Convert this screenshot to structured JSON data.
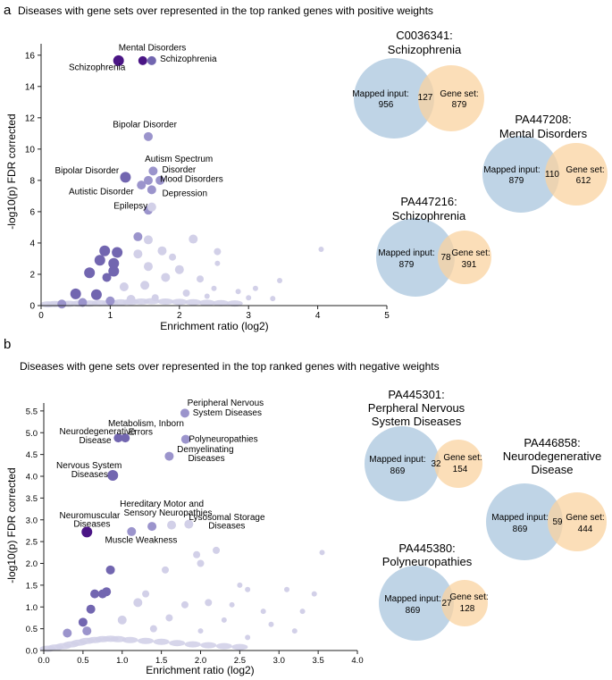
{
  "colors": {
    "point_light": "#d2d0e8",
    "point_mid": "#9b94cc",
    "point_dark": "#7266b0",
    "point_darkest": "#4a1585",
    "venn_blue": "#a9c6dd",
    "venn_orange": "#f9d3a0",
    "axis": "#222222"
  },
  "chart_data": [
    {
      "panel_letter": "a",
      "type": "scatter",
      "title": "Diseases with gene sets over represented in the top ranked genes with positive weights",
      "xlabel": "Enrichment ratio (log2)",
      "ylabel": "-log10(p) FDR corrected",
      "xlim": [
        0,
        5
      ],
      "ylim": [
        0,
        16.5
      ],
      "xticks": [
        "0",
        "1",
        "2",
        "3",
        "4",
        "5"
      ],
      "yticks": [
        "0",
        "2",
        "4",
        "6",
        "8",
        "10",
        "12",
        "14",
        "16"
      ],
      "labels": [
        {
          "text": "Mental Disorders",
          "x": 1.12,
          "y": 16.3,
          "anchor": "start"
        },
        {
          "text": "Schizophrenia",
          "x": 0.4,
          "y": 15.05,
          "anchor": "start"
        },
        {
          "text": "Schizophrenia",
          "x": 1.72,
          "y": 15.6,
          "anchor": "start"
        },
        {
          "text": "Bipolar Disorder",
          "x": 1.5,
          "y": 11.4,
          "anchor": "middle"
        },
        {
          "text": "Autism Spectrum",
          "x": 1.5,
          "y": 9.2,
          "anchor": "start"
        },
        {
          "text": "Disorder",
          "x": 1.75,
          "y": 8.5,
          "anchor": "start"
        },
        {
          "text": "Bipolar Disorder",
          "x": 0.2,
          "y": 8.45,
          "anchor": "start"
        },
        {
          "text": "Mood Disorders",
          "x": 1.72,
          "y": 7.9,
          "anchor": "start"
        },
        {
          "text": "Autistic Disorder",
          "x": 0.4,
          "y": 7.1,
          "anchor": "start"
        },
        {
          "text": "Depression",
          "x": 1.75,
          "y": 7.0,
          "anchor": "start"
        },
        {
          "text": "Epilepsy",
          "x": 1.05,
          "y": 6.2,
          "anchor": "start"
        }
      ],
      "points": [
        {
          "x": 1.12,
          "y": 15.65,
          "tone": "darkest",
          "r": 6
        },
        {
          "x": 1.47,
          "y": 15.65,
          "tone": "darkest",
          "r": 5
        },
        {
          "x": 1.6,
          "y": 15.65,
          "tone": "dark",
          "r": 5
        },
        {
          "x": 1.55,
          "y": 10.8,
          "tone": "mid",
          "r": 5
        },
        {
          "x": 1.22,
          "y": 8.2,
          "tone": "dark",
          "r": 6
        },
        {
          "x": 1.62,
          "y": 8.6,
          "tone": "mid",
          "r": 5
        },
        {
          "x": 1.55,
          "y": 8.0,
          "tone": "mid",
          "r": 5
        },
        {
          "x": 1.72,
          "y": 8.0,
          "tone": "mid",
          "r": 5
        },
        {
          "x": 1.45,
          "y": 7.7,
          "tone": "mid",
          "r": 5
        },
        {
          "x": 1.6,
          "y": 7.4,
          "tone": "mid",
          "r": 5
        },
        {
          "x": 1.55,
          "y": 6.1,
          "tone": "mid",
          "r": 5
        },
        {
          "x": 1.6,
          "y": 6.3,
          "tone": "light",
          "r": 5
        },
        {
          "x": 1.4,
          "y": 4.4,
          "tone": "mid",
          "r": 5
        },
        {
          "x": 1.55,
          "y": 4.2,
          "tone": "light",
          "r": 5
        },
        {
          "x": 2.2,
          "y": 4.25,
          "tone": "light",
          "r": 5
        },
        {
          "x": 0.92,
          "y": 3.5,
          "tone": "dark",
          "r": 6
        },
        {
          "x": 1.1,
          "y": 3.4,
          "tone": "dark",
          "r": 6
        },
        {
          "x": 1.75,
          "y": 3.5,
          "tone": "light",
          "r": 5
        },
        {
          "x": 2.55,
          "y": 3.45,
          "tone": "light",
          "r": 4
        },
        {
          "x": 0.85,
          "y": 2.9,
          "tone": "dark",
          "r": 6
        },
        {
          "x": 1.05,
          "y": 2.7,
          "tone": "dark",
          "r": 6
        },
        {
          "x": 1.4,
          "y": 3.3,
          "tone": "light",
          "r": 5
        },
        {
          "x": 1.9,
          "y": 3.1,
          "tone": "light",
          "r": 4
        },
        {
          "x": 2.55,
          "y": 2.7,
          "tone": "light",
          "r": 3
        },
        {
          "x": 4.05,
          "y": 3.6,
          "tone": "light",
          "r": 3
        },
        {
          "x": 0.7,
          "y": 2.1,
          "tone": "dark",
          "r": 6
        },
        {
          "x": 1.05,
          "y": 2.2,
          "tone": "dark",
          "r": 6
        },
        {
          "x": 1.55,
          "y": 2.5,
          "tone": "light",
          "r": 5
        },
        {
          "x": 2.0,
          "y": 2.3,
          "tone": "light",
          "r": 5
        },
        {
          "x": 1.8,
          "y": 1.8,
          "tone": "light",
          "r": 5
        },
        {
          "x": 0.95,
          "y": 1.8,
          "tone": "dark",
          "r": 5
        },
        {
          "x": 2.3,
          "y": 1.7,
          "tone": "light",
          "r": 4
        },
        {
          "x": 3.45,
          "y": 1.6,
          "tone": "light",
          "r": 3
        },
        {
          "x": 0.5,
          "y": 0.75,
          "tone": "dark",
          "r": 6
        },
        {
          "x": 0.8,
          "y": 0.7,
          "tone": "dark",
          "r": 6
        },
        {
          "x": 1.2,
          "y": 1.2,
          "tone": "light",
          "r": 5
        },
        {
          "x": 1.5,
          "y": 1.3,
          "tone": "light",
          "r": 5
        },
        {
          "x": 2.5,
          "y": 1.1,
          "tone": "light",
          "r": 3
        },
        {
          "x": 2.85,
          "y": 0.9,
          "tone": "light",
          "r": 3
        },
        {
          "x": 3.1,
          "y": 1.1,
          "tone": "light",
          "r": 3
        },
        {
          "x": 2.1,
          "y": 0.8,
          "tone": "light",
          "r": 4
        },
        {
          "x": 2.4,
          "y": 0.6,
          "tone": "light",
          "r": 3
        },
        {
          "x": 3.0,
          "y": 0.5,
          "tone": "light",
          "r": 3
        },
        {
          "x": 3.35,
          "y": 0.45,
          "tone": "light",
          "r": 3
        },
        {
          "x": 1.0,
          "y": 0.3,
          "tone": "mid",
          "r": 5
        },
        {
          "x": 1.3,
          "y": 0.4,
          "tone": "light",
          "r": 5
        },
        {
          "x": 1.65,
          "y": 0.5,
          "tone": "light",
          "r": 4
        },
        {
          "x": 0.3,
          "y": 0.1,
          "tone": "mid",
          "r": 5
        },
        {
          "x": 0.6,
          "y": 0.2,
          "tone": "mid",
          "r": 5
        }
      ],
      "cloud": [
        {
          "x": 0.1,
          "y": 0.02
        },
        {
          "x": 0.2,
          "y": 0.04
        },
        {
          "x": 0.3,
          "y": 0.05
        },
        {
          "x": 0.4,
          "y": 0.06
        },
        {
          "x": 0.55,
          "y": 0.07
        },
        {
          "x": 0.7,
          "y": 0.08
        },
        {
          "x": 0.85,
          "y": 0.1
        },
        {
          "x": 1.0,
          "y": 0.12
        },
        {
          "x": 1.15,
          "y": 0.15
        },
        {
          "x": 1.3,
          "y": 0.18
        },
        {
          "x": 1.45,
          "y": 0.2
        },
        {
          "x": 1.6,
          "y": 0.22
        },
        {
          "x": 1.8,
          "y": 0.2
        },
        {
          "x": 2.0,
          "y": 0.18
        },
        {
          "x": 2.2,
          "y": 0.16
        },
        {
          "x": 2.4,
          "y": 0.12
        },
        {
          "x": 2.6,
          "y": 0.1
        },
        {
          "x": 2.8,
          "y": 0.08
        }
      ],
      "venn": [
        {
          "title_1": "C0036341:",
          "title_2": "Schizophrenia",
          "mapped_label": "Mapped input:",
          "mapped": "956",
          "overlap": "127",
          "gene_label": "Gene set:",
          "gene": "879"
        },
        {
          "title_1": "PA447208:",
          "title_2": "Mental Disorders",
          "mapped_label": "Mapped input:",
          "mapped": "879",
          "overlap": "110",
          "gene_label": "Gene set:",
          "gene": "612"
        },
        {
          "title_1": "PA447216:",
          "title_2": "Schizophrenia",
          "mapped_label": "Mapped input:",
          "mapped": "879",
          "overlap": "78",
          "gene_label": "Gene set:",
          "gene": "391"
        }
      ]
    },
    {
      "panel_letter": "b",
      "type": "scatter",
      "title": "Diseases with gene sets over represented in the top ranked genes with negative weights",
      "xlabel": "Enrichment ratio (log2)",
      "ylabel": "-log10(p) FDR corrected",
      "xlim": [
        0,
        4
      ],
      "ylim": [
        0,
        5.6
      ],
      "xticks": [
        "0.0",
        "0.5",
        "1.0",
        "1.5",
        "2.0",
        "2.5",
        "3.0",
        "3.5",
        "4.0"
      ],
      "yticks": [
        "0.0",
        "0.5",
        "1.0",
        "1.5",
        "2.0",
        "2.5",
        "3.0",
        "3.5",
        "4.0",
        "4.5",
        "5.0",
        "5.5"
      ],
      "labels": [
        {
          "text": "Peripheral Nervous",
          "x": 1.83,
          "y": 5.62,
          "anchor": "start"
        },
        {
          "text": "System Diseases",
          "x": 1.9,
          "y": 5.4,
          "anchor": "start"
        },
        {
          "text": "Metabolism, Inborn",
          "x": 0.82,
          "y": 5.15,
          "anchor": "start"
        },
        {
          "text": "Errors",
          "x": 1.08,
          "y": 4.95,
          "anchor": "start"
        },
        {
          "text": "Neurodegenerative",
          "x": 0.2,
          "y": 4.96,
          "anchor": "start"
        },
        {
          "text": "Disease",
          "x": 0.45,
          "y": 4.76,
          "anchor": "start"
        },
        {
          "text": "Polyneuropathies",
          "x": 1.85,
          "y": 4.79,
          "anchor": "start"
        },
        {
          "text": "Demyelinating",
          "x": 1.7,
          "y": 4.55,
          "anchor": "start"
        },
        {
          "text": "Diseases",
          "x": 1.84,
          "y": 4.35,
          "anchor": "start"
        },
        {
          "text": "Nervous System",
          "x": 0.16,
          "y": 4.18,
          "anchor": "start"
        },
        {
          "text": "Diseases",
          "x": 0.35,
          "y": 3.98,
          "anchor": "start"
        },
        {
          "text": "Hereditary Motor and",
          "x": 0.97,
          "y": 3.3,
          "anchor": "start"
        },
        {
          "text": "Sensory Neuropathies",
          "x": 1.02,
          "y": 3.1,
          "anchor": "start"
        },
        {
          "text": "Neuromuscular",
          "x": 0.2,
          "y": 3.04,
          "anchor": "start"
        },
        {
          "text": "Diseases",
          "x": 0.38,
          "y": 2.84,
          "anchor": "start"
        },
        {
          "text": "Lysosomal Storage",
          "x": 1.85,
          "y": 3.0,
          "anchor": "start"
        },
        {
          "text": "Diseases",
          "x": 2.1,
          "y": 2.8,
          "anchor": "start"
        },
        {
          "text": "Muscle Weakness",
          "x": 0.78,
          "y": 2.47,
          "anchor": "start"
        }
      ],
      "points": [
        {
          "x": 1.8,
          "y": 5.45,
          "tone": "mid",
          "r": 5
        },
        {
          "x": 0.95,
          "y": 4.88,
          "tone": "dark",
          "r": 5
        },
        {
          "x": 1.04,
          "y": 4.88,
          "tone": "dark",
          "r": 5
        },
        {
          "x": 1.81,
          "y": 4.85,
          "tone": "mid",
          "r": 5
        },
        {
          "x": 1.6,
          "y": 4.46,
          "tone": "mid",
          "r": 5
        },
        {
          "x": 0.88,
          "y": 4.02,
          "tone": "dark",
          "r": 6
        },
        {
          "x": 0.55,
          "y": 2.72,
          "tone": "darkest",
          "r": 6
        },
        {
          "x": 1.12,
          "y": 2.73,
          "tone": "mid",
          "r": 5
        },
        {
          "x": 1.38,
          "y": 2.85,
          "tone": "mid",
          "r": 5
        },
        {
          "x": 1.63,
          "y": 2.88,
          "tone": "light",
          "r": 5
        },
        {
          "x": 1.85,
          "y": 2.9,
          "tone": "light",
          "r": 5
        },
        {
          "x": 2.2,
          "y": 2.3,
          "tone": "light",
          "r": 4
        },
        {
          "x": 1.95,
          "y": 2.2,
          "tone": "light",
          "r": 4
        },
        {
          "x": 2.0,
          "y": 2.0,
          "tone": "light",
          "r": 4
        },
        {
          "x": 3.55,
          "y": 2.25,
          "tone": "light",
          "r": 3
        },
        {
          "x": 0.85,
          "y": 1.85,
          "tone": "dark",
          "r": 5
        },
        {
          "x": 1.55,
          "y": 1.85,
          "tone": "light",
          "r": 4
        },
        {
          "x": 0.65,
          "y": 1.3,
          "tone": "dark",
          "r": 5
        },
        {
          "x": 0.8,
          "y": 1.35,
          "tone": "dark",
          "r": 5
        },
        {
          "x": 0.75,
          "y": 1.3,
          "tone": "dark",
          "r": 5
        },
        {
          "x": 1.3,
          "y": 1.3,
          "tone": "light",
          "r": 4
        },
        {
          "x": 2.5,
          "y": 1.5,
          "tone": "light",
          "r": 3
        },
        {
          "x": 2.6,
          "y": 1.4,
          "tone": "light",
          "r": 3
        },
        {
          "x": 3.1,
          "y": 1.4,
          "tone": "light",
          "r": 3
        },
        {
          "x": 3.45,
          "y": 1.3,
          "tone": "light",
          "r": 3
        },
        {
          "x": 0.6,
          "y": 0.95,
          "tone": "dark",
          "r": 5
        },
        {
          "x": 1.2,
          "y": 1.1,
          "tone": "light",
          "r": 5
        },
        {
          "x": 1.8,
          "y": 1.05,
          "tone": "light",
          "r": 4
        },
        {
          "x": 2.1,
          "y": 1.1,
          "tone": "light",
          "r": 4
        },
        {
          "x": 2.4,
          "y": 1.05,
          "tone": "light",
          "r": 3
        },
        {
          "x": 2.8,
          "y": 0.9,
          "tone": "light",
          "r": 3
        },
        {
          "x": 3.3,
          "y": 0.9,
          "tone": "light",
          "r": 3
        },
        {
          "x": 0.5,
          "y": 0.65,
          "tone": "dark",
          "r": 5
        },
        {
          "x": 1.0,
          "y": 0.7,
          "tone": "light",
          "r": 5
        },
        {
          "x": 1.6,
          "y": 0.75,
          "tone": "light",
          "r": 4
        },
        {
          "x": 2.3,
          "y": 0.7,
          "tone": "light",
          "r": 3
        },
        {
          "x": 2.9,
          "y": 0.6,
          "tone": "light",
          "r": 3
        },
        {
          "x": 3.2,
          "y": 0.45,
          "tone": "light",
          "r": 3
        },
        {
          "x": 0.3,
          "y": 0.4,
          "tone": "mid",
          "r": 5
        },
        {
          "x": 0.55,
          "y": 0.45,
          "tone": "mid",
          "r": 5
        },
        {
          "x": 1.4,
          "y": 0.5,
          "tone": "light",
          "r": 4
        },
        {
          "x": 2.0,
          "y": 0.45,
          "tone": "light",
          "r": 3
        },
        {
          "x": 2.6,
          "y": 0.3,
          "tone": "light",
          "r": 3
        }
      ],
      "cloud": [
        {
          "x": 0.05,
          "y": 0.02
        },
        {
          "x": 0.15,
          "y": 0.05
        },
        {
          "x": 0.25,
          "y": 0.08
        },
        {
          "x": 0.35,
          "y": 0.12
        },
        {
          "x": 0.45,
          "y": 0.16
        },
        {
          "x": 0.55,
          "y": 0.2
        },
        {
          "x": 0.65,
          "y": 0.22
        },
        {
          "x": 0.75,
          "y": 0.24
        },
        {
          "x": 0.85,
          "y": 0.25
        },
        {
          "x": 0.95,
          "y": 0.24
        },
        {
          "x": 1.1,
          "y": 0.22
        },
        {
          "x": 1.3,
          "y": 0.2
        },
        {
          "x": 1.5,
          "y": 0.18
        },
        {
          "x": 1.7,
          "y": 0.15
        },
        {
          "x": 1.9,
          "y": 0.12
        },
        {
          "x": 2.1,
          "y": 0.1
        },
        {
          "x": 2.3,
          "y": 0.08
        },
        {
          "x": 2.5,
          "y": 0.06
        }
      ],
      "venn": [
        {
          "title_1": "PA445301:",
          "title_2": "Perpheral Nervous",
          "title_3": "System Diseases",
          "mapped_label": "Mapped input:",
          "mapped": "869",
          "overlap": "32",
          "gene_label": "Gene set:",
          "gene": "154"
        },
        {
          "title_1": "PA446858:",
          "title_2": "Neurodegenerative",
          "title_3": "Disease",
          "mapped_label": "Mapped input:",
          "mapped": "869",
          "overlap": "59",
          "gene_label": "Gene set:",
          "gene": "444"
        },
        {
          "title_1": "PA445380:",
          "title_2": "Polyneuropathies",
          "mapped_label": "Mapped input:",
          "mapped": "869",
          "overlap": "27",
          "gene_label": "Gene set:",
          "gene": "128"
        }
      ]
    }
  ]
}
